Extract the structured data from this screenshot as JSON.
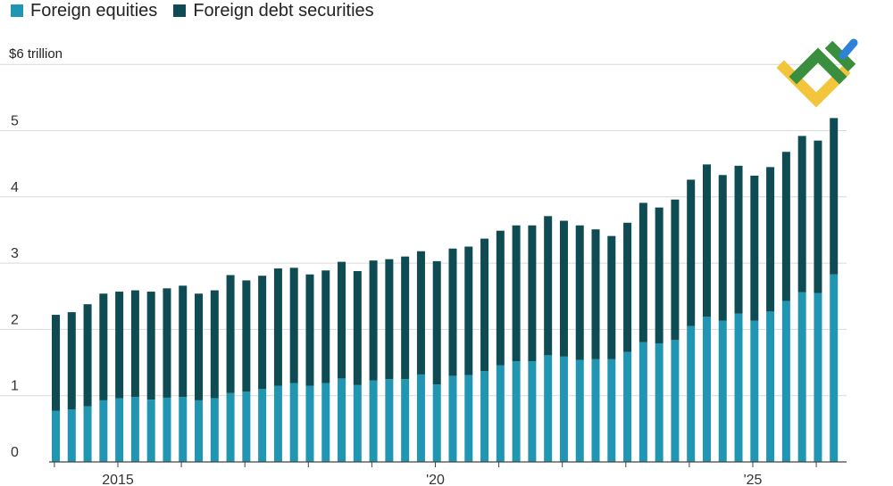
{
  "legend": [
    {
      "label": "Foreign equities",
      "color": "#2196b3"
    },
    {
      "label": "Foreign debt securities",
      "color": "#0e4b52"
    }
  ],
  "logo": {
    "name": "brand-logo",
    "colors": [
      "#3a8f3e",
      "#f2c53d",
      "#2f80d8"
    ]
  },
  "chart_data": {
    "type": "bar",
    "stacked": true,
    "unit_label": "$6 trillion",
    "ylim": [
      0,
      6
    ],
    "yticks": [
      "0",
      "1",
      "2",
      "3",
      "4",
      "5"
    ],
    "xticks": [
      "2015",
      "'20",
      "'25"
    ],
    "grid": true,
    "legend_position": "top-left",
    "series": [
      {
        "name": "Foreign equities",
        "color": "#2196b3",
        "values": [
          0.77,
          0.79,
          0.84,
          0.93,
          0.96,
          0.98,
          0.94,
          0.97,
          0.98,
          0.93,
          0.96,
          1.04,
          1.06,
          1.1,
          1.15,
          1.19,
          1.15,
          1.19,
          1.26,
          1.16,
          1.23,
          1.25,
          1.25,
          1.32,
          1.17,
          1.3,
          1.31,
          1.37,
          1.46,
          1.52,
          1.52,
          1.61,
          1.59,
          1.54,
          1.55,
          1.55,
          1.66,
          1.81,
          1.79,
          1.84,
          2.05,
          2.19,
          2.13,
          2.24,
          2.13,
          2.27,
          2.43,
          2.56,
          2.55,
          2.83
        ]
      },
      {
        "name": "Foreign debt securities",
        "color": "#0e4b52",
        "values": [
          1.45,
          1.47,
          1.54,
          1.61,
          1.61,
          1.61,
          1.63,
          1.65,
          1.68,
          1.61,
          1.63,
          1.78,
          1.68,
          1.71,
          1.77,
          1.74,
          1.68,
          1.7,
          1.76,
          1.72,
          1.81,
          1.81,
          1.85,
          1.86,
          1.86,
          1.92,
          1.94,
          2.0,
          2.03,
          2.05,
          2.05,
          2.1,
          2.05,
          2.03,
          1.96,
          1.86,
          1.95,
          2.1,
          2.05,
          2.12,
          2.21,
          2.3,
          2.2,
          2.23,
          2.19,
          2.18,
          2.25,
          2.36,
          2.3,
          2.36
        ]
      }
    ]
  }
}
